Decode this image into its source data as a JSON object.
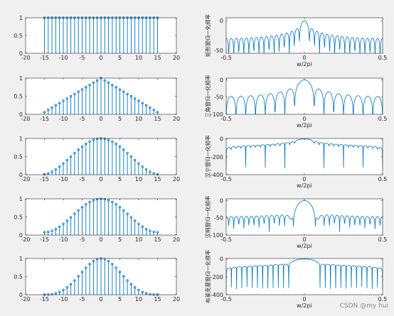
{
  "chart_data": [
    {
      "type": "stem",
      "kind": "rect",
      "x": {
        "min": -15,
        "max": 15
      },
      "xlim": [
        -20,
        20
      ],
      "ylim": [
        0,
        1
      ],
      "xticks": [
        "-20",
        "-15",
        "-10",
        "-5",
        "0",
        "5",
        "10",
        "15",
        "20"
      ],
      "yticks": [
        "0",
        "0.5",
        "1"
      ]
    },
    {
      "type": "line",
      "kind": "rect",
      "xlabel": "w/2pi",
      "ylabel": "矩形窗归一化频率",
      "xlim": [
        -0.5,
        0.5
      ],
      "ylim": [
        -55,
        5
      ],
      "xticks": [
        "-0.5",
        "0",
        "0.5"
      ],
      "yticks": [
        "-50",
        "0"
      ]
    },
    {
      "type": "stem",
      "kind": "bartlett",
      "x": {
        "min": -15,
        "max": 15
      },
      "xlim": [
        -20,
        20
      ],
      "ylim": [
        0,
        1
      ],
      "xticks": [
        "-20",
        "-15",
        "-10",
        "-5",
        "0",
        "5",
        "10",
        "15",
        "20"
      ],
      "yticks": [
        "0",
        "0.5",
        "1"
      ]
    },
    {
      "type": "line",
      "kind": "bartlett",
      "xlabel": "w/2pi",
      "ylabel": "三角窗归一化频率",
      "xlim": [
        -0.5,
        0.5
      ],
      "ylim": [
        -100,
        5
      ],
      "xticks": [
        "-0.5",
        "0",
        "0.5"
      ],
      "yticks": [
        "-100",
        "-50",
        "0"
      ]
    },
    {
      "type": "stem",
      "kind": "hann",
      "x": {
        "min": -15,
        "max": 15
      },
      "xlim": [
        -20,
        20
      ],
      "ylim": [
        0,
        1
      ],
      "xticks": [
        "-20",
        "-15",
        "-10",
        "-5",
        "0",
        "5",
        "10",
        "15",
        "20"
      ],
      "yticks": [
        "0",
        "0.5",
        "1"
      ]
    },
    {
      "type": "line",
      "kind": "hann",
      "xlabel": "w/2pi",
      "ylabel": "汉宁窗归一化频率",
      "xlim": [
        -0.5,
        0.5
      ],
      "ylim": [
        -400,
        5
      ],
      "xticks": [
        "-0.5",
        "0",
        "0.5"
      ],
      "yticks": [
        "-400",
        "-200",
        "0"
      ]
    },
    {
      "type": "stem",
      "kind": "hamming",
      "x": {
        "min": -15,
        "max": 15
      },
      "xlim": [
        -20,
        20
      ],
      "ylim": [
        0,
        1
      ],
      "xticks": [
        "-20",
        "-15",
        "-10",
        "-5",
        "0",
        "5",
        "10",
        "15",
        "20"
      ],
      "yticks": [
        "0",
        "0.5",
        "1"
      ]
    },
    {
      "type": "line",
      "kind": "hamming",
      "xlabel": "w/2pi",
      "ylabel": "汉明窗归一化频率",
      "xlim": [
        -0.5,
        0.5
      ],
      "ylim": [
        -100,
        5
      ],
      "xticks": [
        "-0.5",
        "0",
        "0.5"
      ],
      "yticks": [
        "-100",
        "-50",
        "0"
      ]
    },
    {
      "type": "stem",
      "kind": "blackman",
      "x": {
        "min": -15,
        "max": 15
      },
      "xlim": [
        -20,
        20
      ],
      "ylim": [
        0,
        1
      ],
      "xticks": [
        "-20",
        "-15",
        "-10",
        "-5",
        "0",
        "5",
        "10",
        "15",
        "20"
      ],
      "yticks": [
        "0",
        "0.5",
        "1"
      ]
    },
    {
      "type": "line",
      "kind": "blackman",
      "xlabel": "w/2pi",
      "ylabel": "布莱克曼窗归一化频率",
      "xlim": [
        -0.5,
        0.5
      ],
      "ylim": [
        -400,
        5
      ],
      "xticks": [
        "-0.5",
        "0",
        "0.5"
      ],
      "yticks": [
        "-400",
        "-200",
        "0"
      ]
    }
  ],
  "colors": {
    "line": "#0072bd",
    "background": "#f0f0f0",
    "axes": "#ffffff",
    "frame": "#262626"
  },
  "watermark": "CSDN @my hui"
}
